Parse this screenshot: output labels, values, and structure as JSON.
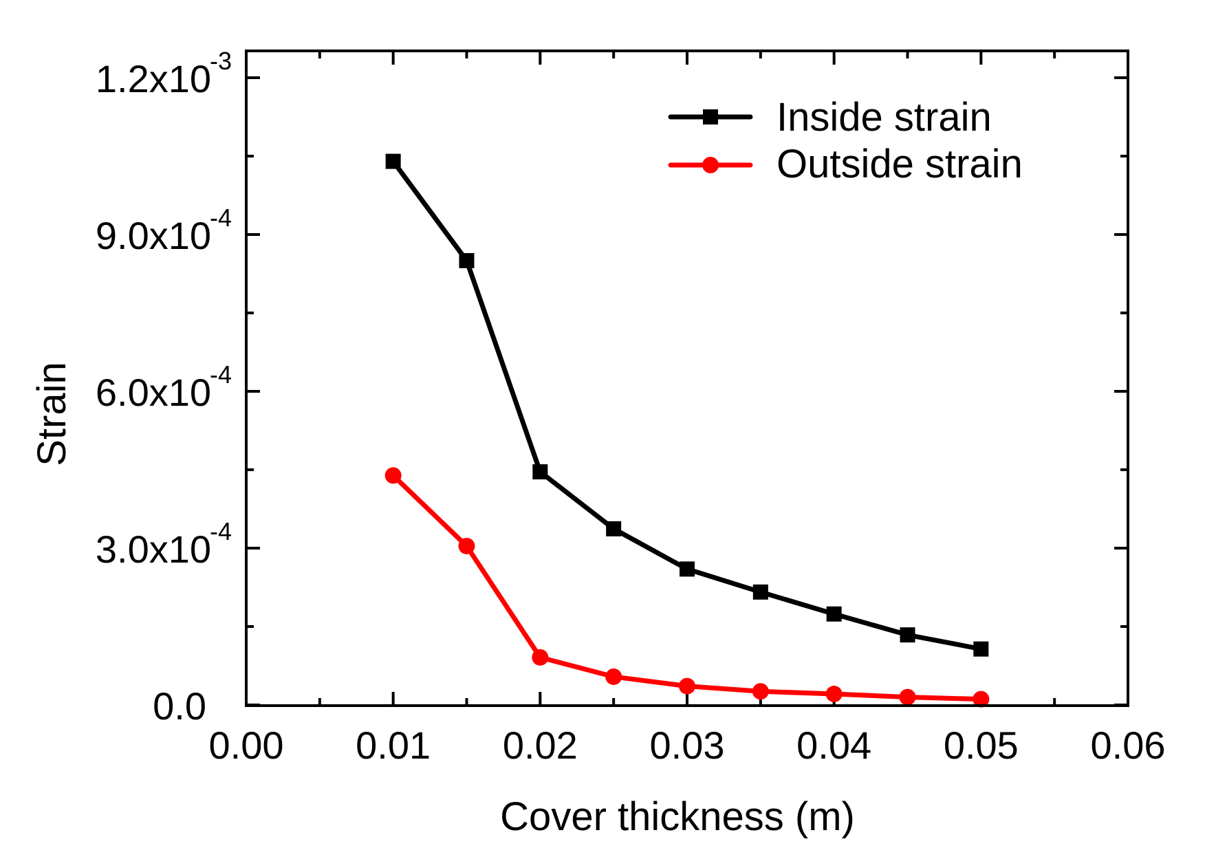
{
  "chart_data": {
    "type": "line",
    "title": "",
    "xlabel": "Cover thickness (m)",
    "ylabel": "Strain",
    "xlim": [
      0.0,
      0.06
    ],
    "ylim": [
      0.0,
      0.00125
    ],
    "grid": false,
    "legend_position": "top-right",
    "x": [
      0.01,
      0.015,
      0.02,
      0.025,
      0.03,
      0.035,
      0.04,
      0.045,
      0.05
    ],
    "series": [
      {
        "name": "Inside strain",
        "color": "#000000",
        "marker": "square",
        "values": [
          0.00104,
          0.00085,
          0.000446,
          0.000337,
          0.00026,
          0.000216,
          0.000174,
          0.000134,
          0.000107
        ]
      },
      {
        "name": "Outside strain",
        "color": "#ff0000",
        "marker": "circle",
        "values": [
          0.000439,
          0.000304,
          9.1e-05,
          5.4e-05,
          3.6e-05,
          2.6e-05,
          2.1e-05,
          1.5e-05,
          1.1e-05
        ]
      }
    ],
    "x_ticks": [
      {
        "value": 0.0,
        "label": "0.00"
      },
      {
        "value": 0.01,
        "label": "0.01"
      },
      {
        "value": 0.02,
        "label": "0.02"
      },
      {
        "value": 0.03,
        "label": "0.03"
      },
      {
        "value": 0.04,
        "label": "0.04"
      },
      {
        "value": 0.05,
        "label": "0.05"
      },
      {
        "value": 0.06,
        "label": "0.06"
      }
    ],
    "x_minor_ticks": [
      0.005,
      0.015,
      0.025,
      0.035,
      0.045,
      0.055
    ],
    "y_ticks": [
      {
        "value": 0.0,
        "mantissa": "0.0",
        "exponent": ""
      },
      {
        "value": 0.0003,
        "mantissa": "3.0x10",
        "exponent": "-4"
      },
      {
        "value": 0.0006,
        "mantissa": "6.0x10",
        "exponent": "-4"
      },
      {
        "value": 0.0009,
        "mantissa": "9.0x10",
        "exponent": "-4"
      },
      {
        "value": 0.0012,
        "mantissa": "1.2x10",
        "exponent": "-3"
      }
    ],
    "y_minor_ticks": [
      0.00015,
      0.00045,
      0.00075,
      0.00105
    ]
  }
}
